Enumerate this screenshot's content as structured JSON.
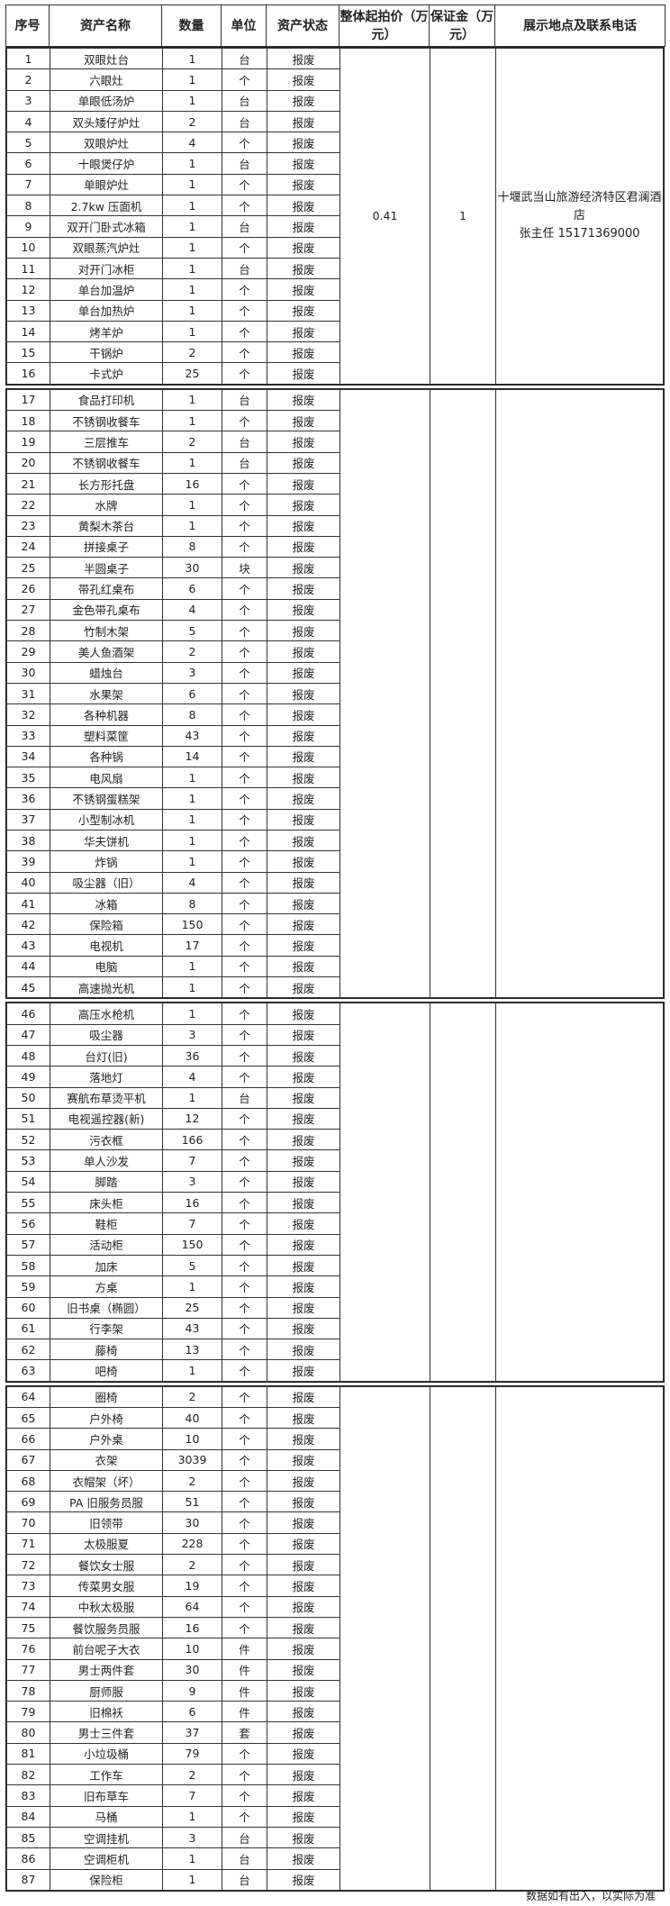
{
  "header": {
    "index": "序号",
    "name": "资产名称",
    "quantity": "数量",
    "unit": "单位",
    "status": "资产状态",
    "start_price": "整体起拍价（万元）",
    "deposit": "保证金（万元）",
    "location": "展示地点及联系电话"
  },
  "sections": [
    {
      "start_price": "0.41",
      "deposit": "1",
      "location": "十堰武当山旅游经济特区君澜酒店",
      "contact": "张主任 15171369000",
      "items": [
        [
          "1",
          "双眼灶台",
          "1",
          "台",
          "报废"
        ],
        [
          "2",
          "六眼灶",
          "1",
          "个",
          "报废"
        ],
        [
          "3",
          "单眼低汤炉",
          "1",
          "台",
          "报废"
        ],
        [
          "4",
          "双头矮仔炉灶",
          "2",
          "台",
          "报废"
        ],
        [
          "5",
          "双眼炉灶",
          "4",
          "个",
          "报废"
        ],
        [
          "6",
          "十眼煲仔炉",
          "1",
          "台",
          "报废"
        ],
        [
          "7",
          "单眼炉灶",
          "1",
          "个",
          "报废"
        ],
        [
          "8",
          "2.7kw 压面机",
          "1",
          "个",
          "报废"
        ],
        [
          "9",
          "双开门卧式冰箱",
          "1",
          "台",
          "报废"
        ],
        [
          "10",
          "双眼蒸汽炉灶",
          "1",
          "个",
          "报废"
        ],
        [
          "11",
          "对开门冰柜",
          "1",
          "台",
          "报废"
        ],
        [
          "12",
          "单台加温炉",
          "1",
          "个",
          "报废"
        ],
        [
          "13",
          "单台加热炉",
          "1",
          "个",
          "报废"
        ],
        [
          "14",
          "烤羊炉",
          "1",
          "个",
          "报废"
        ],
        [
          "15",
          "干锅炉",
          "2",
          "个",
          "报废"
        ],
        [
          "16",
          "卡式炉",
          "25",
          "个",
          "报废"
        ]
      ]
    },
    {
      "items": [
        [
          "17",
          "食品打印机",
          "1",
          "台",
          "报废"
        ],
        [
          "18",
          "不锈钢收餐车",
          "1",
          "个",
          "报废"
        ],
        [
          "19",
          "三层推车",
          "2",
          "台",
          "报废"
        ],
        [
          "20",
          "不锈钢收餐车",
          "1",
          "台",
          "报废"
        ],
        [
          "21",
          "长方形托盘",
          "16",
          "个",
          "报废"
        ],
        [
          "22",
          "水牌",
          "1",
          "个",
          "报废"
        ],
        [
          "23",
          "黄梨木茶台",
          "1",
          "个",
          "报废"
        ],
        [
          "24",
          "拼接桌子",
          "8",
          "个",
          "报废"
        ],
        [
          "25",
          "半圆桌子",
          "30",
          "块",
          "报废"
        ],
        [
          "26",
          "带孔红桌布",
          "6",
          "个",
          "报废"
        ],
        [
          "27",
          "金色带孔桌布",
          "4",
          "个",
          "报废"
        ],
        [
          "28",
          "竹制木架",
          "5",
          "个",
          "报废"
        ],
        [
          "29",
          "美人鱼酒架",
          "2",
          "个",
          "报废"
        ],
        [
          "30",
          "蜡烛台",
          "3",
          "个",
          "报废"
        ],
        [
          "31",
          "水果架",
          "6",
          "个",
          "报废"
        ],
        [
          "32",
          "各种机器",
          "8",
          "个",
          "报废"
        ],
        [
          "33",
          "塑料菜筐",
          "43",
          "个",
          "报废"
        ],
        [
          "34",
          "各种锅",
          "14",
          "个",
          "报废"
        ],
        [
          "35",
          "电风扇",
          "1",
          "个",
          "报废"
        ],
        [
          "36",
          "不锈钢蛋糕架",
          "1",
          "个",
          "报废"
        ],
        [
          "37",
          "小型制冰机",
          "1",
          "个",
          "报废"
        ],
        [
          "38",
          "华夫饼机",
          "1",
          "个",
          "报废"
        ],
        [
          "39",
          "炸锅",
          "1",
          "个",
          "报废"
        ],
        [
          "40",
          "吸尘器（旧）",
          "4",
          "个",
          "报废"
        ],
        [
          "41",
          "冰箱",
          "8",
          "个",
          "报废"
        ],
        [
          "42",
          "保险箱",
          "150",
          "个",
          "报废"
        ],
        [
          "43",
          "电视机",
          "17",
          "个",
          "报废"
        ],
        [
          "44",
          "电脑",
          "1",
          "个",
          "报废"
        ],
        [
          "45",
          "高速抛光机",
          "1",
          "个",
          "报废"
        ]
      ]
    },
    {
      "items": [
        [
          "46",
          "高压水枪机",
          "1",
          "个",
          "报废"
        ],
        [
          "47",
          "吸尘器",
          "3",
          "个",
          "报废"
        ],
        [
          "48",
          "台灯(旧)",
          "36",
          "个",
          "报废"
        ],
        [
          "49",
          "落地灯",
          "4",
          "个",
          "报废"
        ],
        [
          "50",
          "赛航布草烫平机",
          "1",
          "台",
          "报废"
        ],
        [
          "51",
          "电视遥控器(新)",
          "12",
          "个",
          "报废"
        ],
        [
          "52",
          "污衣框",
          "166",
          "个",
          "报废"
        ],
        [
          "53",
          "单人沙发",
          "7",
          "个",
          "报废"
        ],
        [
          "54",
          "脚踏",
          "3",
          "个",
          "报废"
        ],
        [
          "55",
          "床头柜",
          "16",
          "个",
          "报废"
        ],
        [
          "56",
          "鞋柜",
          "7",
          "个",
          "报废"
        ],
        [
          "57",
          "活动柜",
          "150",
          "个",
          "报废"
        ],
        [
          "58",
          "加床",
          "5",
          "个",
          "报废"
        ],
        [
          "59",
          "方桌",
          "1",
          "个",
          "报废"
        ],
        [
          "60",
          "旧书桌（椭圆）",
          "25",
          "个",
          "报废"
        ],
        [
          "61",
          "行李架",
          "43",
          "个",
          "报废"
        ],
        [
          "62",
          "藤椅",
          "13",
          "个",
          "报废"
        ],
        [
          "63",
          "吧椅",
          "1",
          "个",
          "报废"
        ]
      ]
    },
    {
      "items": [
        [
          "64",
          "圈椅",
          "2",
          "个",
          "报废"
        ],
        [
          "65",
          "户外椅",
          "40",
          "个",
          "报废"
        ],
        [
          "66",
          "户外桌",
          "10",
          "个",
          "报废"
        ],
        [
          "67",
          "衣架",
          "3039",
          "个",
          "报废"
        ],
        [
          "68",
          "衣帽架（坏）",
          "2",
          "个",
          "报废"
        ],
        [
          "69",
          "PA 旧服务员服",
          "51",
          "个",
          "报废"
        ],
        [
          "70",
          "旧领带",
          "30",
          "个",
          "报废"
        ],
        [
          "71",
          "太极服夏",
          "228",
          "个",
          "报废"
        ],
        [
          "72",
          "餐饮女士服",
          "2",
          "个",
          "报废"
        ],
        [
          "73",
          "传菜男女服",
          "19",
          "个",
          "报废"
        ],
        [
          "74",
          "中秋太极服",
          "64",
          "个",
          "报废"
        ],
        [
          "75",
          "餐饮服务员服",
          "16",
          "个",
          "报废"
        ],
        [
          "76",
          "前台呢子大衣",
          "10",
          "件",
          "报废"
        ],
        [
          "77",
          "男士两件套",
          "30",
          "件",
          "报废"
        ],
        [
          "78",
          "厨师服",
          "9",
          "件",
          "报废"
        ],
        [
          "79",
          "旧棉袄",
          "6",
          "件",
          "报废"
        ],
        [
          "80",
          "男士三件套",
          "37",
          "套",
          "报废"
        ],
        [
          "81",
          "小垃圾桶",
          "79",
          "个",
          "报废"
        ],
        [
          "82",
          "工作车",
          "2",
          "个",
          "报废"
        ],
        [
          "83",
          "旧布草车",
          "7",
          "个",
          "报废"
        ],
        [
          "84",
          "马桶",
          "1",
          "个",
          "报废"
        ],
        [
          "85",
          "空调挂机",
          "3",
          "台",
          "报废"
        ],
        [
          "86",
          "空调柜机",
          "1",
          "台",
          "报废"
        ],
        [
          "87",
          "保险柜",
          "1",
          "台",
          "报废"
        ]
      ]
    }
  ],
  "footer": "数据如有出入，以实际为准"
}
